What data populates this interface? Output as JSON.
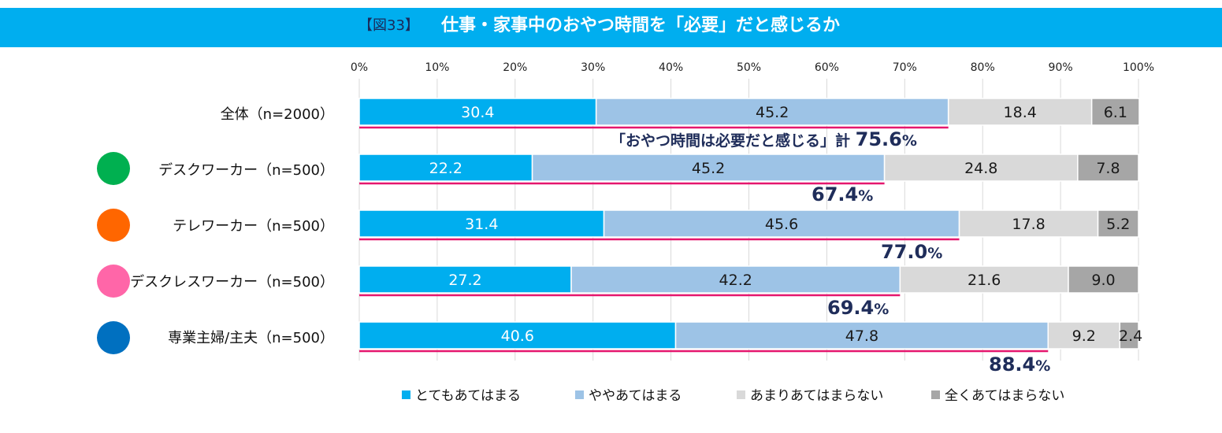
{
  "header": {
    "figure_label": "【図33】",
    "title": "仕事・家事中のおやつ時間を「必要」だと感じるか"
  },
  "colors": {
    "title_bar": "#00aeef",
    "seg1": "#00aeef",
    "seg2": "#9dc3e6",
    "seg3": "#d9d9d9",
    "seg4": "#a6a6a6",
    "accent_line": "#e5176e",
    "dot_desk": "#00b050",
    "dot_tele": "#ff6600",
    "dot_deskless": "#ff66a8",
    "dot_housewife": "#0070c0"
  },
  "chart_data": {
    "type": "bar",
    "orientation": "horizontal-stacked-100",
    "title": "仕事・家事中のおやつ時間を「必要」だと感じるか",
    "xlim": [
      0,
      100
    ],
    "x_ticks": [
      "0%",
      "10%",
      "20%",
      "30%",
      "40%",
      "50%",
      "60%",
      "70%",
      "80%",
      "90%",
      "100%"
    ],
    "categories": [
      "全体（n=2000）",
      "デスクワーカー（n=500）",
      "テレワーカー（n=500）",
      "デスクレスワーカー（n=500）",
      "専業主婦/主夫（n=500）"
    ],
    "series": [
      {
        "name": "とてもあてはまる",
        "values": [
          30.4,
          22.2,
          31.4,
          27.2,
          40.6
        ]
      },
      {
        "name": "ややあてはまる",
        "values": [
          45.2,
          45.2,
          45.6,
          42.2,
          47.8
        ]
      },
      {
        "name": "あまりあてはまらない",
        "values": [
          18.4,
          24.8,
          17.8,
          21.6,
          9.2
        ]
      },
      {
        "name": "全くあてはまらない",
        "values": [
          6.1,
          7.8,
          5.2,
          9.0,
          2.4
        ]
      }
    ],
    "value_labels": [
      [
        "30.4",
        "45.2",
        "18.4",
        "6.1"
      ],
      [
        "22.2",
        "45.2",
        "24.8",
        "7.8"
      ],
      [
        "31.4",
        "45.6",
        "17.8",
        "5.2"
      ],
      [
        "27.2",
        "42.2",
        "21.6",
        "9.0"
      ],
      [
        "40.6",
        "47.8",
        "9.2",
        "2.4"
      ]
    ],
    "totals": [
      {
        "prefix": "「おやつ時間は必要だと感じる」計 ",
        "number": "75.6",
        "unit": "%",
        "value": 75.6
      },
      {
        "prefix": "",
        "number": "67.4",
        "unit": "%",
        "value": 67.4
      },
      {
        "prefix": "",
        "number": "77.0",
        "unit": "%",
        "value": 77.0
      },
      {
        "prefix": "",
        "number": "69.4",
        "unit": "%",
        "value": 69.4
      },
      {
        "prefix": "",
        "number": "88.4",
        "unit": "%",
        "value": 88.4
      }
    ],
    "legend_position": "bottom",
    "grid": true
  }
}
